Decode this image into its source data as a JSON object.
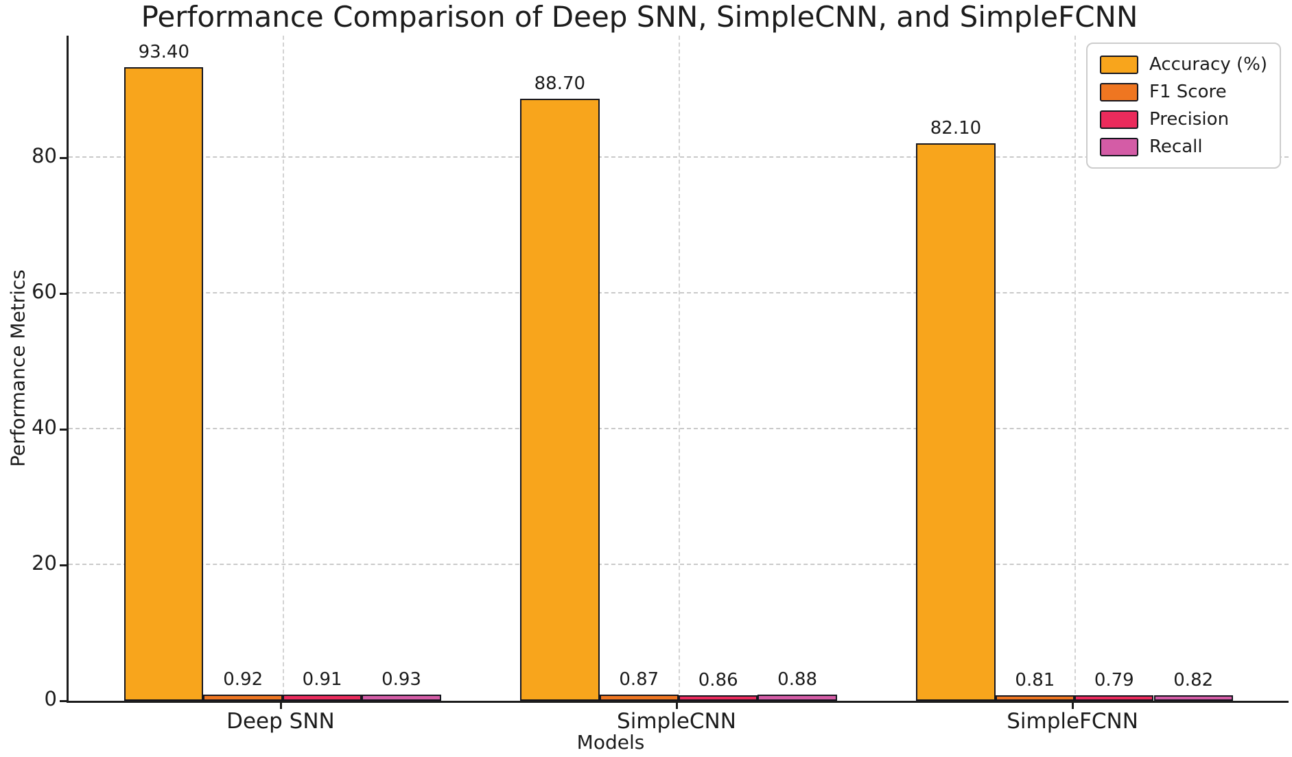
{
  "chart_data": {
    "type": "bar",
    "title": "Performance Comparison of Deep SNN, SimpleCNN, and SimpleFCNN",
    "xlabel": "Models",
    "ylabel": "Performance Metrics",
    "categories": [
      "Deep SNN",
      "SimpleCNN",
      "SimpleFCNN"
    ],
    "series": [
      {
        "name": "Accuracy (%)",
        "color": "#F8A51C",
        "values": [
          93.4,
          88.7,
          82.1
        ],
        "labels": [
          "93.40",
          "88.70",
          "82.10"
        ]
      },
      {
        "name": "F1 Score",
        "color": "#EF7621",
        "values": [
          0.92,
          0.87,
          0.81
        ],
        "labels": [
          "0.92",
          "0.87",
          "0.81"
        ]
      },
      {
        "name": "Precision",
        "color": "#EB2B5C",
        "values": [
          0.91,
          0.86,
          0.79
        ],
        "labels": [
          "0.91",
          "0.86",
          "0.79"
        ]
      },
      {
        "name": "Recall",
        "color": "#D45CA6",
        "values": [
          0.93,
          0.88,
          0.82
        ],
        "labels": [
          "0.93",
          "0.88",
          "0.82"
        ]
      }
    ],
    "ylim": [
      0,
      98
    ],
    "yticks": [
      0,
      20,
      40,
      60,
      80
    ],
    "grid": "dashed, horizontal and vertical, light gray",
    "legend_position": "top-right",
    "bar_edge_color": "#16161E",
    "bar_group_width_ratio": 0.8
  }
}
